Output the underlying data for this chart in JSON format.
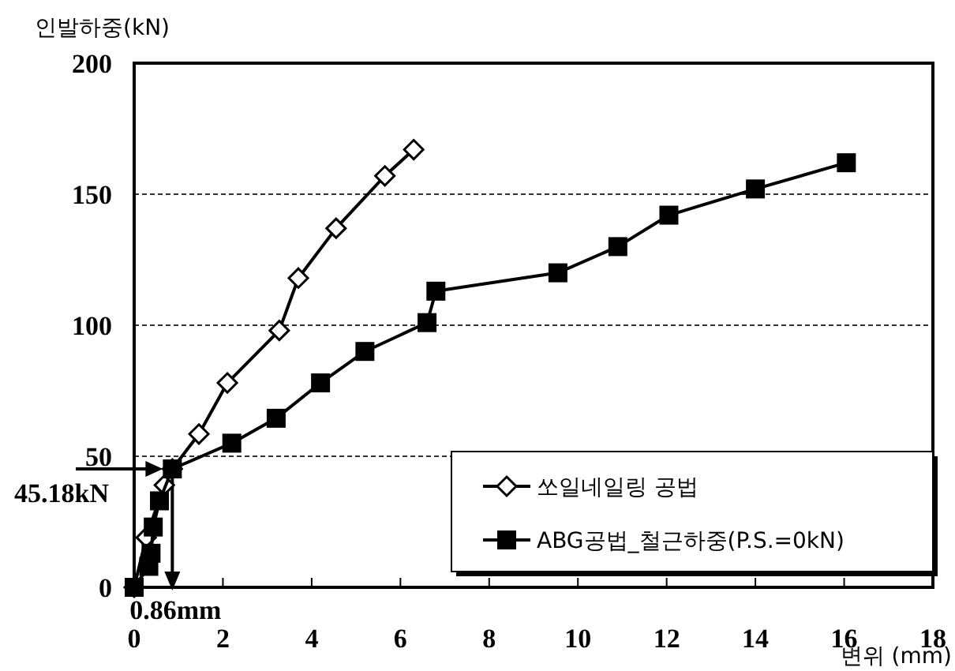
{
  "chart_data": {
    "type": "line",
    "xlabel": "변위 (mm)",
    "ylabel": "인발하중(kN)",
    "xlim": [
      0,
      18
    ],
    "xticks": [
      0,
      2,
      4,
      6,
      8,
      10,
      12,
      14,
      16,
      18
    ],
    "ylim": [
      0,
      200
    ],
    "yticks": [
      0,
      50,
      100,
      150,
      200
    ],
    "grid": "y",
    "legend": "bottom right",
    "series": [
      {
        "name": "쏘일네일링 공법",
        "color": "#000000",
        "marker": "diamond",
        "x": [
          0,
          0.27,
          0.68,
          0.86,
          1.46,
          2.1,
          3.27,
          3.7,
          4.55,
          5.65,
          6.3
        ],
        "values": [
          0,
          19,
          39,
          45.18,
          58.5,
          78,
          98,
          118,
          137,
          157,
          167
        ]
      },
      {
        "name": "ABG공법_철근하중(P.S.=0kN)",
        "color": "#000000",
        "marker": "square",
        "x": [
          0,
          0.33,
          0.38,
          0.43,
          0.57,
          0.86,
          2.2,
          3.2,
          4.2,
          5.2,
          6.6,
          6.8,
          9.55,
          10.9,
          12.05,
          14.0,
          16.05
        ],
        "values": [
          0,
          8,
          13,
          23,
          33,
          45.18,
          55,
          64.5,
          78,
          90,
          101,
          113,
          120,
          130,
          142,
          152,
          162
        ]
      }
    ],
    "annotations": [
      {
        "text": "45.18kN",
        "x": 0.86,
        "y": 45.18
      },
      {
        "text": "0.86mm",
        "x": 0.86,
        "y": 45.18
      }
    ]
  }
}
